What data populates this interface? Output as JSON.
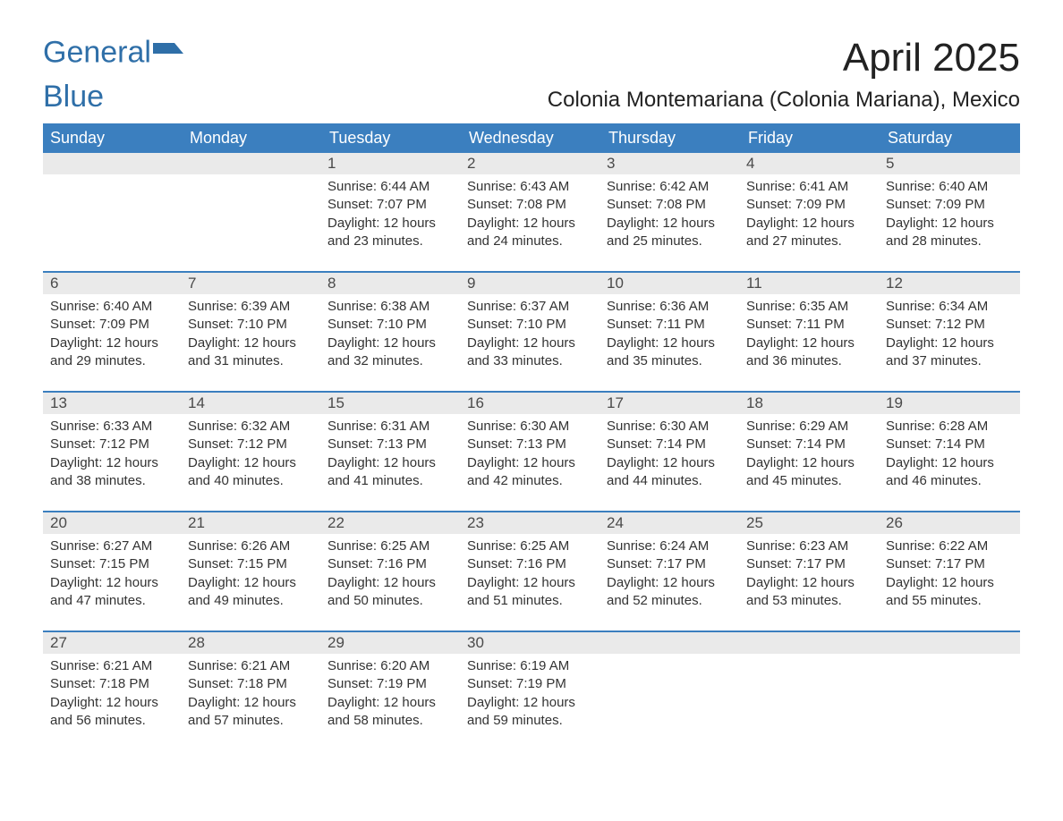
{
  "brand": {
    "part1": "General",
    "part2": "Blue"
  },
  "title": "April 2025",
  "subtitle": "Colonia Montemariana (Colonia Mariana), Mexico",
  "colors": {
    "header_bg": "#3b7fbf",
    "header_text": "#ffffff",
    "day_bar_bg": "#eaeaea",
    "day_bar_text": "#4a4a4a",
    "week_divider": "#3b7fbf",
    "body_text": "#333333",
    "brand_color": "#2f6fa8",
    "page_bg": "#ffffff"
  },
  "typography": {
    "title_fontsize": 44,
    "subtitle_fontsize": 24,
    "dow_fontsize": 18,
    "daynum_fontsize": 17,
    "body_fontsize": 15
  },
  "calendar": {
    "type": "calendar",
    "columns": 7,
    "dow": [
      "Sunday",
      "Monday",
      "Tuesday",
      "Wednesday",
      "Thursday",
      "Friday",
      "Saturday"
    ],
    "weeks": [
      [
        {
          "empty": true
        },
        {
          "empty": true
        },
        {
          "num": "1",
          "sunrise": "Sunrise: 6:44 AM",
          "sunset": "Sunset: 7:07 PM",
          "day1": "Daylight: 12 hours",
          "day2": "and 23 minutes."
        },
        {
          "num": "2",
          "sunrise": "Sunrise: 6:43 AM",
          "sunset": "Sunset: 7:08 PM",
          "day1": "Daylight: 12 hours",
          "day2": "and 24 minutes."
        },
        {
          "num": "3",
          "sunrise": "Sunrise: 6:42 AM",
          "sunset": "Sunset: 7:08 PM",
          "day1": "Daylight: 12 hours",
          "day2": "and 25 minutes."
        },
        {
          "num": "4",
          "sunrise": "Sunrise: 6:41 AM",
          "sunset": "Sunset: 7:09 PM",
          "day1": "Daylight: 12 hours",
          "day2": "and 27 minutes."
        },
        {
          "num": "5",
          "sunrise": "Sunrise: 6:40 AM",
          "sunset": "Sunset: 7:09 PM",
          "day1": "Daylight: 12 hours",
          "day2": "and 28 minutes."
        }
      ],
      [
        {
          "num": "6",
          "sunrise": "Sunrise: 6:40 AM",
          "sunset": "Sunset: 7:09 PM",
          "day1": "Daylight: 12 hours",
          "day2": "and 29 minutes."
        },
        {
          "num": "7",
          "sunrise": "Sunrise: 6:39 AM",
          "sunset": "Sunset: 7:10 PM",
          "day1": "Daylight: 12 hours",
          "day2": "and 31 minutes."
        },
        {
          "num": "8",
          "sunrise": "Sunrise: 6:38 AM",
          "sunset": "Sunset: 7:10 PM",
          "day1": "Daylight: 12 hours",
          "day2": "and 32 minutes."
        },
        {
          "num": "9",
          "sunrise": "Sunrise: 6:37 AM",
          "sunset": "Sunset: 7:10 PM",
          "day1": "Daylight: 12 hours",
          "day2": "and 33 minutes."
        },
        {
          "num": "10",
          "sunrise": "Sunrise: 6:36 AM",
          "sunset": "Sunset: 7:11 PM",
          "day1": "Daylight: 12 hours",
          "day2": "and 35 minutes."
        },
        {
          "num": "11",
          "sunrise": "Sunrise: 6:35 AM",
          "sunset": "Sunset: 7:11 PM",
          "day1": "Daylight: 12 hours",
          "day2": "and 36 minutes."
        },
        {
          "num": "12",
          "sunrise": "Sunrise: 6:34 AM",
          "sunset": "Sunset: 7:12 PM",
          "day1": "Daylight: 12 hours",
          "day2": "and 37 minutes."
        }
      ],
      [
        {
          "num": "13",
          "sunrise": "Sunrise: 6:33 AM",
          "sunset": "Sunset: 7:12 PM",
          "day1": "Daylight: 12 hours",
          "day2": "and 38 minutes."
        },
        {
          "num": "14",
          "sunrise": "Sunrise: 6:32 AM",
          "sunset": "Sunset: 7:12 PM",
          "day1": "Daylight: 12 hours",
          "day2": "and 40 minutes."
        },
        {
          "num": "15",
          "sunrise": "Sunrise: 6:31 AM",
          "sunset": "Sunset: 7:13 PM",
          "day1": "Daylight: 12 hours",
          "day2": "and 41 minutes."
        },
        {
          "num": "16",
          "sunrise": "Sunrise: 6:30 AM",
          "sunset": "Sunset: 7:13 PM",
          "day1": "Daylight: 12 hours",
          "day2": "and 42 minutes."
        },
        {
          "num": "17",
          "sunrise": "Sunrise: 6:30 AM",
          "sunset": "Sunset: 7:14 PM",
          "day1": "Daylight: 12 hours",
          "day2": "and 44 minutes."
        },
        {
          "num": "18",
          "sunrise": "Sunrise: 6:29 AM",
          "sunset": "Sunset: 7:14 PM",
          "day1": "Daylight: 12 hours",
          "day2": "and 45 minutes."
        },
        {
          "num": "19",
          "sunrise": "Sunrise: 6:28 AM",
          "sunset": "Sunset: 7:14 PM",
          "day1": "Daylight: 12 hours",
          "day2": "and 46 minutes."
        }
      ],
      [
        {
          "num": "20",
          "sunrise": "Sunrise: 6:27 AM",
          "sunset": "Sunset: 7:15 PM",
          "day1": "Daylight: 12 hours",
          "day2": "and 47 minutes."
        },
        {
          "num": "21",
          "sunrise": "Sunrise: 6:26 AM",
          "sunset": "Sunset: 7:15 PM",
          "day1": "Daylight: 12 hours",
          "day2": "and 49 minutes."
        },
        {
          "num": "22",
          "sunrise": "Sunrise: 6:25 AM",
          "sunset": "Sunset: 7:16 PM",
          "day1": "Daylight: 12 hours",
          "day2": "and 50 minutes."
        },
        {
          "num": "23",
          "sunrise": "Sunrise: 6:25 AM",
          "sunset": "Sunset: 7:16 PM",
          "day1": "Daylight: 12 hours",
          "day2": "and 51 minutes."
        },
        {
          "num": "24",
          "sunrise": "Sunrise: 6:24 AM",
          "sunset": "Sunset: 7:17 PM",
          "day1": "Daylight: 12 hours",
          "day2": "and 52 minutes."
        },
        {
          "num": "25",
          "sunrise": "Sunrise: 6:23 AM",
          "sunset": "Sunset: 7:17 PM",
          "day1": "Daylight: 12 hours",
          "day2": "and 53 minutes."
        },
        {
          "num": "26",
          "sunrise": "Sunrise: 6:22 AM",
          "sunset": "Sunset: 7:17 PM",
          "day1": "Daylight: 12 hours",
          "day2": "and 55 minutes."
        }
      ],
      [
        {
          "num": "27",
          "sunrise": "Sunrise: 6:21 AM",
          "sunset": "Sunset: 7:18 PM",
          "day1": "Daylight: 12 hours",
          "day2": "and 56 minutes."
        },
        {
          "num": "28",
          "sunrise": "Sunrise: 6:21 AM",
          "sunset": "Sunset: 7:18 PM",
          "day1": "Daylight: 12 hours",
          "day2": "and 57 minutes."
        },
        {
          "num": "29",
          "sunrise": "Sunrise: 6:20 AM",
          "sunset": "Sunset: 7:19 PM",
          "day1": "Daylight: 12 hours",
          "day2": "and 58 minutes."
        },
        {
          "num": "30",
          "sunrise": "Sunrise: 6:19 AM",
          "sunset": "Sunset: 7:19 PM",
          "day1": "Daylight: 12 hours",
          "day2": "and 59 minutes."
        },
        {
          "empty": true
        },
        {
          "empty": true
        },
        {
          "empty": true
        }
      ]
    ]
  }
}
